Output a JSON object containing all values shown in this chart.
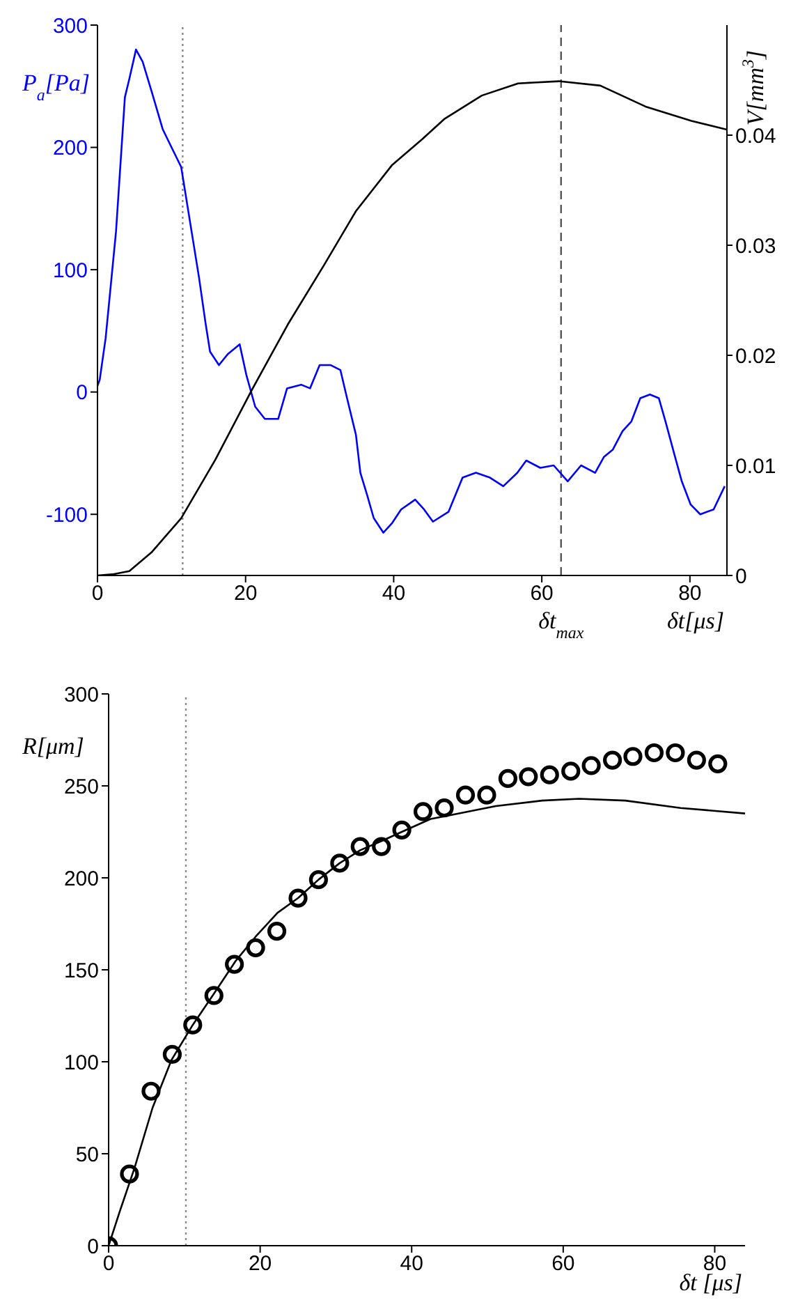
{
  "chart_data": [
    {
      "type": "line",
      "ylabel": "P$_{a}$[Pa]",
      "y2label": "V[mm$^{3}$]",
      "xlabel": "δt[μs]",
      "xlim": [
        0,
        85
      ],
      "xticks": [
        0,
        20,
        40,
        60,
        80
      ],
      "ylim": [
        -150,
        300
      ],
      "yticks": [
        -100,
        0,
        100,
        200,
        300
      ],
      "y2lim": [
        0,
        0.05
      ],
      "y2ticks": [
        0,
        0.01,
        0.02,
        0.03,
        0.04
      ],
      "ref_lines": [
        {
          "axis": "x",
          "value": 62.6,
          "label": "δt$_{max}$",
          "color": "#555555",
          "line_style": "dashed"
        },
        {
          "axis": "x",
          "value": 11.5,
          "color": "#888888",
          "line_style": "dotted"
        }
      ],
      "series": [
        {
          "color": "#0000ff",
          "x": [
            0,
            0.3,
            1.1,
            2.5,
            3.7,
            4.3,
            5.2,
            6.1,
            7.3,
            8.8,
            10.0,
            11.3,
            12.5,
            13.7,
            14.6,
            15.2,
            16.4,
            17.6,
            19.2,
            20.1,
            21.3,
            22.6,
            24.4,
            25.6,
            27.5,
            28.7,
            30,
            31.5,
            32.8,
            33.7,
            34.9,
            35.5,
            36.4,
            37.3,
            38.6,
            39.8,
            41,
            42.9,
            44.1,
            45.3,
            47.4,
            49.3,
            51.1,
            53,
            54.8,
            56.7,
            57.9,
            59.8,
            61.6,
            63.5,
            65.3,
            67.2,
            68.4,
            69.6,
            70.9,
            72.1,
            73.3,
            74.6,
            75.8,
            76.7,
            77.9,
            78.9,
            80.1,
            81.4,
            83.2,
            84.7
          ],
          "values": [
            5,
            10,
            44,
            131,
            241,
            256,
            280,
            270,
            246,
            215,
            200,
            184,
            139,
            94,
            56,
            33,
            22,
            31,
            39,
            14,
            -12,
            -22,
            -22,
            3,
            6,
            3,
            22,
            22,
            18,
            -5,
            -35,
            -66,
            -84,
            -103,
            -115,
            -107,
            -96,
            -88,
            -96,
            -106,
            -98,
            -70,
            -66,
            -70,
            -77,
            -66,
            -56,
            -62,
            -60,
            -73,
            -60,
            -66,
            -53,
            -47,
            -32,
            -24,
            -5,
            -2,
            -5,
            -24,
            -51,
            -73,
            -92,
            -100,
            -96,
            -77
          ]
        },
        {
          "color": "#000000",
          "axis": "y2",
          "x": [
            0,
            2,
            4.3,
            7.3,
            11.3,
            15.9,
            20.8,
            25.7,
            30.6,
            34.9,
            39.8,
            43.8,
            46.9,
            51.9,
            56.8,
            62.3,
            67.9,
            74,
            80.2,
            85
          ],
          "values": [
            0,
            0.0001,
            0.0004,
            0.0021,
            0.0052,
            0.0105,
            0.0168,
            0.0228,
            0.0282,
            0.0331,
            0.0373,
            0.0396,
            0.0415,
            0.0436,
            0.0447,
            0.0449,
            0.0445,
            0.0426,
            0.0413,
            0.0405
          ]
        }
      ]
    },
    {
      "type": "scatter",
      "ylabel": "R[μm]",
      "xlabel": "δt [μs]",
      "xlim": [
        0,
        84
      ],
      "xticks": [
        0,
        20,
        40,
        60,
        80
      ],
      "ylim": [
        0,
        300
      ],
      "yticks": [
        0,
        50,
        100,
        150,
        200,
        250,
        300
      ],
      "ref_lines": [
        {
          "axis": "x",
          "value": 10.2,
          "color": "#888888",
          "line_style": "dotted"
        }
      ],
      "series": [
        {
          "color": "#000000",
          "marker": "circle",
          "x": [
            0,
            2.75,
            5.6,
            8.4,
            11.1,
            13.9,
            16.6,
            19.4,
            22.2,
            25.0,
            27.7,
            30.5,
            33.2,
            36.0,
            38.7,
            41.5,
            44.3,
            47.1,
            49.9,
            52.7,
            55.4,
            58.2,
            61.0,
            63.7,
            66.5,
            69.2,
            72.0,
            74.8,
            77.6,
            80.4
          ],
          "values": [
            0,
            39,
            84,
            104,
            120,
            136,
            153,
            162,
            171,
            189,
            199,
            208,
            217,
            217,
            226,
            236,
            238,
            245,
            245,
            254,
            255,
            256,
            258,
            261,
            264,
            266,
            268,
            268,
            264,
            262
          ]
        },
        {
          "type": "line",
          "color": "#000000",
          "x": [
            0,
            1.5,
            3.4,
            5.8,
            8.3,
            11.1,
            13.9,
            16.8,
            19.4,
            22.3,
            25,
            27.7,
            30.5,
            33.2,
            36,
            38.7,
            42.5,
            45,
            51.1,
            57.2,
            62.1,
            68.2,
            75.5,
            84
          ],
          "values": [
            0,
            19,
            42,
            75,
            101,
            120,
            137,
            155,
            168,
            181,
            189,
            199,
            208,
            215,
            220,
            225,
            232,
            234,
            239,
            242,
            243,
            242,
            238,
            235
          ]
        }
      ]
    }
  ]
}
